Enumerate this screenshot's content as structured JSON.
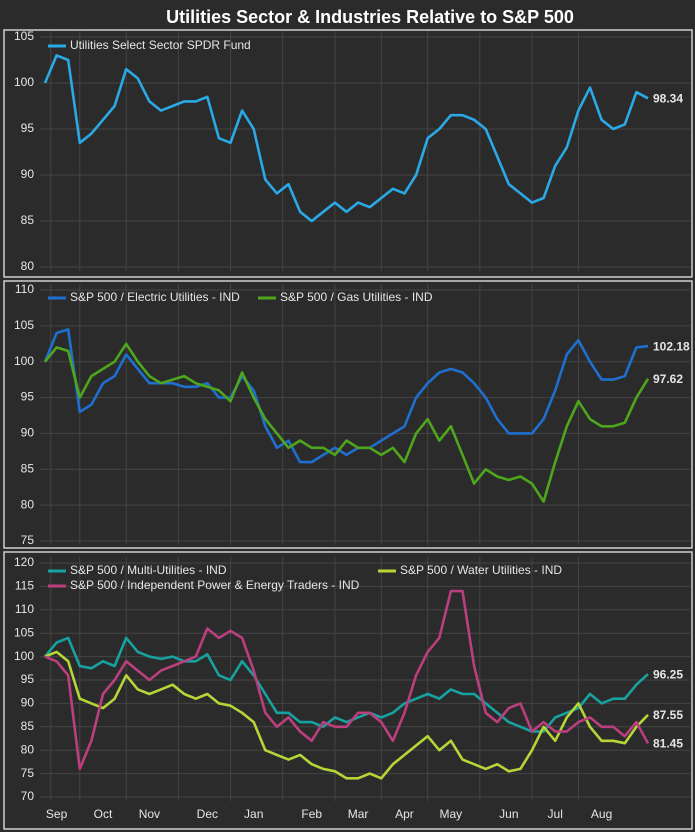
{
  "title": "Utilities Sector & Industries Relative to S&P 500",
  "chart_data": [
    {
      "type": "line",
      "ylim": [
        80,
        105
      ],
      "yticks": [
        80,
        85,
        90,
        95,
        100,
        105
      ],
      "grid": true,
      "series": [
        {
          "name": "Utilities Select Sector SPDR Fund",
          "color": "#2aa9e6",
          "values": [
            100,
            103,
            102.5,
            93.5,
            94.5,
            96,
            97.5,
            101.5,
            100.5,
            98,
            97,
            97.5,
            98,
            98,
            98.5,
            94,
            93.5,
            97,
            95,
            89.5,
            88,
            89,
            86,
            85,
            86,
            87,
            86,
            87,
            86.5,
            87.5,
            88.5,
            88,
            90,
            94,
            95,
            96.5,
            96.5,
            96,
            95,
            92,
            89,
            88,
            87,
            87.5,
            91,
            93,
            97,
            99.5,
            96,
            95,
            95.5,
            99,
            98.34
          ]
        }
      ]
    },
    {
      "type": "line",
      "ylim": [
        75,
        110
      ],
      "yticks": [
        75,
        80,
        85,
        90,
        95,
        100,
        105,
        110
      ],
      "grid": true,
      "series": [
        {
          "name": "S&P 500 / Electric Utilities - IND",
          "color": "#1f6fd0",
          "values": [
            100,
            104,
            104.5,
            93,
            94,
            97,
            98,
            101,
            99,
            97,
            97,
            97,
            96.5,
            96.5,
            97,
            95,
            95,
            98,
            96,
            91,
            88,
            89,
            86,
            86,
            87,
            88,
            87,
            88,
            88,
            89,
            90,
            91,
            95,
            97,
            98.5,
            99,
            98.5,
            97,
            95,
            92,
            90,
            90,
            90,
            92,
            96,
            101,
            103,
            100,
            97.5,
            97.5,
            98,
            102,
            102.18
          ]
        },
        {
          "name": "S&P 500 / Gas Utilities - IND",
          "color": "#4ea61c",
          "values": [
            100,
            102,
            101.5,
            95,
            98,
            99,
            100,
            102.5,
            100,
            98,
            97,
            97.5,
            98,
            97,
            96.5,
            96,
            94.5,
            98.5,
            95,
            92,
            90,
            88,
            89,
            88,
            88,
            87,
            89,
            88,
            88,
            87,
            88,
            86,
            90,
            92,
            89,
            91,
            87,
            83,
            85,
            84,
            83.5,
            84,
            83,
            80.5,
            86,
            91,
            94.5,
            92,
            91,
            91,
            91.5,
            95,
            97.62
          ]
        }
      ]
    },
    {
      "type": "line",
      "ylim": [
        70,
        120
      ],
      "yticks": [
        70,
        75,
        80,
        85,
        90,
        95,
        100,
        105,
        110,
        115,
        120
      ],
      "grid": true,
      "categories": [
        null,
        "Sep",
        null,
        null,
        null,
        "Oct",
        null,
        null,
        null,
        "Nov",
        null,
        null,
        null,
        null,
        "Dec",
        null,
        null,
        null,
        "Jan",
        null,
        null,
        null,
        null,
        "Feb",
        null,
        null,
        null,
        "Mar",
        null,
        null,
        null,
        "Apr",
        null,
        null,
        null,
        "May",
        null,
        null,
        null,
        null,
        "Jun",
        null,
        null,
        null,
        "Jul",
        null,
        null,
        null,
        "Aug",
        null,
        null,
        null,
        null
      ],
      "series": [
        {
          "name": "S&P 500 / Multi-Utilities - IND",
          "color": "#17a2a2",
          "values": [
            100,
            103,
            104,
            98,
            97.5,
            99,
            98,
            104,
            101,
            100,
            99.5,
            100,
            99,
            99,
            100.5,
            96,
            95,
            99,
            96,
            92,
            88,
            88,
            86,
            86,
            85,
            87,
            86,
            87,
            88,
            87,
            88,
            90,
            91,
            92,
            91,
            93,
            92,
            92,
            90,
            88,
            86,
            85,
            84,
            84,
            87,
            88,
            89,
            92,
            90,
            91,
            91,
            94,
            96.25
          ]
        },
        {
          "name": "S&P 500 / Water Utilities - IND",
          "color": "#b5d636",
          "values": [
            100,
            101,
            99,
            91,
            90,
            89,
            91,
            96,
            93,
            92,
            93,
            94,
            92,
            91,
            92,
            90,
            89.5,
            88,
            86,
            80,
            79,
            78,
            79,
            77,
            76,
            75.5,
            74,
            74,
            75,
            74,
            77,
            79,
            81,
            83,
            80,
            82,
            78,
            77,
            76,
            77,
            75.5,
            76,
            80,
            85,
            82,
            87,
            90,
            85,
            82,
            82,
            81.5,
            85,
            87.55
          ]
        },
        {
          "name": "S&P 500 / Independent Power & Energy Traders - IND",
          "color": "#bb3f7e",
          "values": [
            100,
            99,
            96,
            76,
            82,
            92,
            95,
            99,
            97,
            95,
            97,
            98,
            99,
            100,
            106,
            104,
            105.5,
            104,
            97,
            88,
            85,
            87,
            84,
            82,
            86,
            85,
            85,
            88,
            88,
            86,
            82,
            88,
            96,
            101,
            104,
            114,
            114,
            98,
            88,
            86,
            89,
            90,
            84,
            86,
            84,
            84,
            86,
            87,
            85,
            85,
            83,
            86,
            81.45
          ]
        }
      ]
    }
  ]
}
